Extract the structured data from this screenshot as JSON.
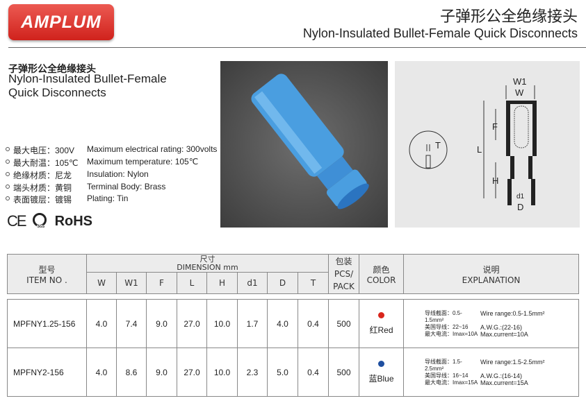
{
  "brand": {
    "logo": "AMPLUM"
  },
  "header": {
    "title_cn": "子弹形公全绝缘接头",
    "title_en": "Nylon-Insulated Bullet-Female Quick Disconnects"
  },
  "product": {
    "title_cn": "子弹形公全绝缘接头",
    "title_en_line1": "Nylon-Insulated Bullet-Female",
    "title_en_line2": "Quick Disconnects"
  },
  "specs": [
    {
      "cn": "最大电压：300V",
      "en": "Maximum electrical rating: 300volts"
    },
    {
      "cn": "最大耐温：105℃",
      "en": "Maximum temperature: 105℃"
    },
    {
      "cn": "绝缘材质：尼龙",
      "en": "Insulation: Nylon"
    },
    {
      "cn": "端头材质：黄铜",
      "en": "Terminal Body: Brass"
    },
    {
      "cn": "表面镀层：镀锡",
      "en": "Plating: Tin"
    }
  ],
  "certs": {
    "ce": "CE",
    "sgs": "SGS",
    "rohs": "RoHS"
  },
  "diagram": {
    "labels": {
      "w1": "W1",
      "w": "W",
      "f": "F",
      "l": "L",
      "h": "H",
      "d1": "d1",
      "d": "D",
      "t": "T"
    }
  },
  "table": {
    "headers": {
      "item_cn": "型号",
      "item_en": "ITEM NO .",
      "dim_cn": "尺寸",
      "dim_en": "DIMENSION mm",
      "pack_cn": "包装",
      "pack_en1": "PCS/",
      "pack_en2": "PACK",
      "color_cn": "颜色",
      "color_en": "COLOR",
      "expl_cn": "说明",
      "expl_en": "EXPLANATION"
    },
    "dim_cols": [
      "W",
      "W1",
      "F",
      "L",
      "H",
      "d1",
      "D",
      "T"
    ],
    "rows": [
      {
        "item": "MPFNY1.25-156",
        "dims": [
          "4.0",
          "7.4",
          "9.0",
          "27.0",
          "10.0",
          "1.7",
          "4.0",
          "0.4"
        ],
        "pack": "500",
        "color_label": "红Red",
        "color_hex": "#d9261c",
        "expl": {
          "cn1": "导线截面：0.5-1.5mm²",
          "en1": "Wire range:0.5-1.5mm²",
          "cn2": "美国导线：22~16",
          "en2": "A.W.G.:(22-16)",
          "cn3": "最大电流：Imax=10A",
          "en3": "Max.current=10A"
        }
      },
      {
        "item": "MPFNY2-156",
        "dims": [
          "4.0",
          "8.6",
          "9.0",
          "27.0",
          "10.0",
          "2.3",
          "5.0",
          "0.4"
        ],
        "pack": "500",
        "color_label": "蓝Blue",
        "color_hex": "#1f4fa0",
        "expl": {
          "cn1": "导线截面：1.5-2.5mm²",
          "en1": "Wire range:1.5-2.5mm²",
          "cn2": "美国导线：16~14",
          "en2": "A.W.G.:(16-14)",
          "cn3": "最大电流：Imax=15A",
          "en3": "Max.current=15A"
        }
      }
    ]
  }
}
